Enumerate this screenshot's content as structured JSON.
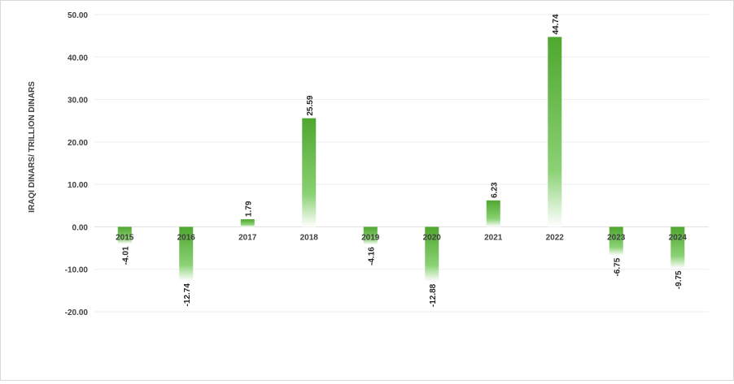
{
  "chart_data": {
    "type": "bar",
    "title": "",
    "xlabel": "",
    "ylabel": "IRAQI DINARS/ TRILLION DINARS",
    "categories": [
      "2015",
      "2016",
      "2017",
      "2018",
      "2019",
      "2020",
      "2021",
      "2022",
      "2023",
      "2024"
    ],
    "values": [
      -4.01,
      -12.74,
      1.79,
      25.59,
      -4.16,
      -12.88,
      6.23,
      44.74,
      -6.75,
      -9.75
    ],
    "data_labels": [
      "-4.01",
      "-12.74",
      "1.79",
      "25.59",
      "-4.16",
      "-12.88",
      "6.23",
      "44.74",
      "-6.75",
      "-9.75"
    ],
    "ylim": [
      -20,
      50
    ],
    "yticks": [
      -20,
      -10,
      0,
      10,
      20,
      30,
      40,
      50
    ],
    "ytick_labels": [
      "-20.00",
      "-10.00",
      "0.00",
      "10.00",
      "20.00",
      "30.00",
      "40.00",
      "50.00"
    ],
    "grid": true,
    "legend": "none",
    "colors": {
      "bar_top": "#4fa72f",
      "bar_mid": "#8ad174",
      "bar_end": "#ffffff",
      "grid": "#eeeeee",
      "text": "#404040"
    }
  }
}
